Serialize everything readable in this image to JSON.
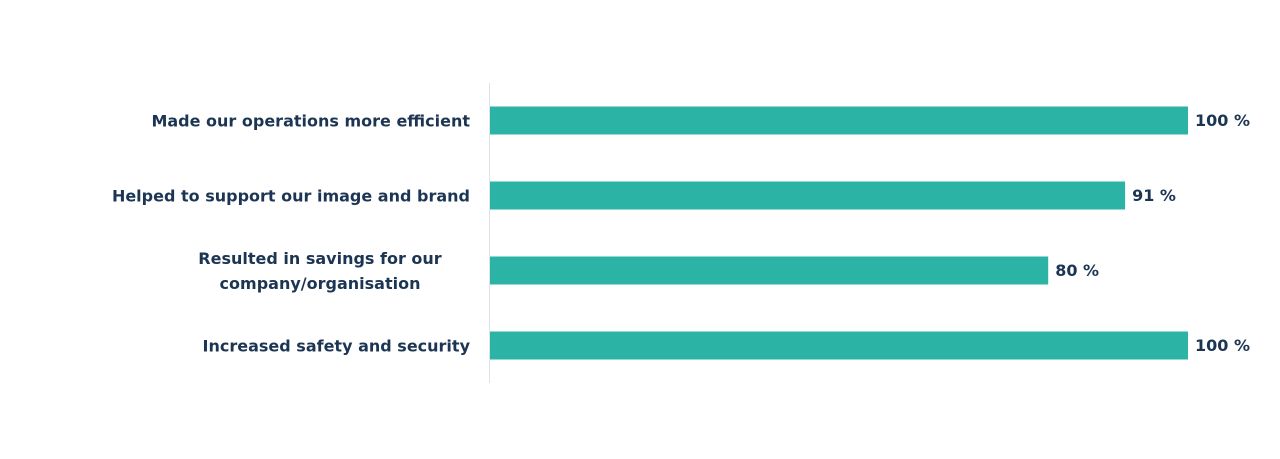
{
  "chart_data": {
    "type": "bar",
    "orientation": "horizontal",
    "categories": [
      "Made our operations more efficient",
      "Helped to support our image and brand",
      "Resulted in savings for our company/organisation",
      "Increased safety and security"
    ],
    "values": [
      100,
      91,
      80,
      100
    ],
    "value_labels": [
      "100 %",
      "91 %",
      "80 %",
      "100 %"
    ],
    "color": "#2bb3a5",
    "xlim": [
      0,
      100
    ]
  }
}
